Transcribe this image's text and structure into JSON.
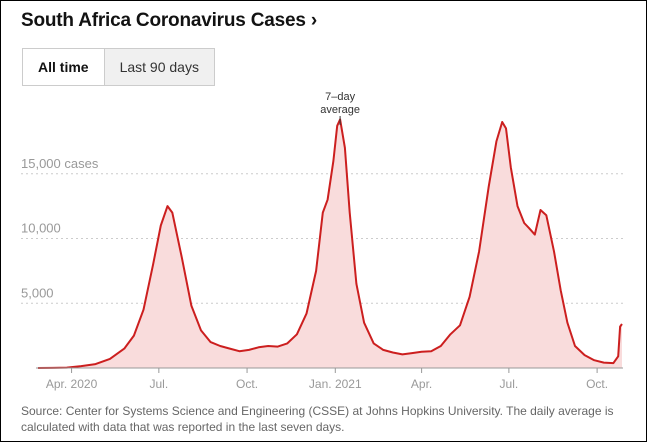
{
  "title": "South Africa Coronavirus Cases",
  "title_chevron": "›",
  "tabs": [
    {
      "label": "All time",
      "active": true
    },
    {
      "label": "Last 90 days",
      "active": false
    }
  ],
  "annotation": {
    "line1": "7–day",
    "line2": "average"
  },
  "source": "Source: Center for Systems Science and Engineering (CSSE) at Johns Hopkins University. The daily average is calculated with data that was reported in the last seven days.",
  "colors": {
    "line": "#cc1f1f",
    "fill": "#f9dcdc",
    "grid": "#cccccc",
    "axis_text": "#999999"
  },
  "chart_data": {
    "type": "area",
    "title": "South Africa Coronavirus Cases",
    "ylabel": "cases",
    "ylim": [
      0,
      20000
    ],
    "yticks": [
      {
        "value": 5000,
        "label": "5,000"
      },
      {
        "value": 10000,
        "label": "10,000"
      },
      {
        "value": 15000,
        "label": "15,000 cases"
      }
    ],
    "xlim": [
      0,
      610
    ],
    "xticks": [
      {
        "day": 35,
        "label": "Apr. 2020"
      },
      {
        "day": 126,
        "label": "Jul."
      },
      {
        "day": 218,
        "label": "Oct."
      },
      {
        "day": 310,
        "label": "Jan. 2021"
      },
      {
        "day": 400,
        "label": "Apr."
      },
      {
        "day": 491,
        "label": "Jul."
      },
      {
        "day": 583,
        "label": "Oct."
      }
    ],
    "series": [
      {
        "name": "7-day average",
        "points": [
          [
            0,
            0
          ],
          [
            15,
            5
          ],
          [
            30,
            30
          ],
          [
            45,
            150
          ],
          [
            60,
            300
          ],
          [
            75,
            700
          ],
          [
            90,
            1500
          ],
          [
            100,
            2500
          ],
          [
            110,
            4500
          ],
          [
            120,
            8000
          ],
          [
            128,
            11000
          ],
          [
            135,
            12500
          ],
          [
            140,
            12000
          ],
          [
            150,
            8500
          ],
          [
            160,
            4800
          ],
          [
            170,
            2900
          ],
          [
            180,
            2000
          ],
          [
            190,
            1700
          ],
          [
            200,
            1500
          ],
          [
            210,
            1300
          ],
          [
            220,
            1400
          ],
          [
            230,
            1600
          ],
          [
            240,
            1700
          ],
          [
            250,
            1650
          ],
          [
            260,
            1900
          ],
          [
            270,
            2600
          ],
          [
            280,
            4200
          ],
          [
            290,
            7500
          ],
          [
            297,
            12000
          ],
          [
            302,
            13000
          ],
          [
            308,
            16000
          ],
          [
            312,
            18700
          ],
          [
            315,
            19200
          ],
          [
            320,
            17000
          ],
          [
            325,
            12000
          ],
          [
            332,
            6500
          ],
          [
            340,
            3500
          ],
          [
            350,
            1900
          ],
          [
            360,
            1400
          ],
          [
            370,
            1200
          ],
          [
            380,
            1050
          ],
          [
            390,
            1150
          ],
          [
            400,
            1250
          ],
          [
            410,
            1300
          ],
          [
            420,
            1700
          ],
          [
            430,
            2600
          ],
          [
            440,
            3300
          ],
          [
            450,
            5500
          ],
          [
            460,
            9000
          ],
          [
            470,
            14000
          ],
          [
            478,
            17500
          ],
          [
            484,
            19000
          ],
          [
            488,
            18500
          ],
          [
            493,
            15500
          ],
          [
            500,
            12500
          ],
          [
            507,
            11200
          ],
          [
            512,
            10800
          ],
          [
            518,
            10300
          ],
          [
            524,
            12200
          ],
          [
            530,
            11800
          ],
          [
            538,
            9000
          ],
          [
            545,
            6000
          ],
          [
            552,
            3500
          ],
          [
            560,
            1700
          ],
          [
            570,
            1000
          ],
          [
            580,
            600
          ],
          [
            590,
            420
          ],
          [
            600,
            380
          ],
          [
            605,
            900
          ],
          [
            607,
            3200
          ],
          [
            609,
            3400
          ]
        ]
      }
    ],
    "annotation": {
      "day": 315,
      "text": "7–day average"
    }
  }
}
